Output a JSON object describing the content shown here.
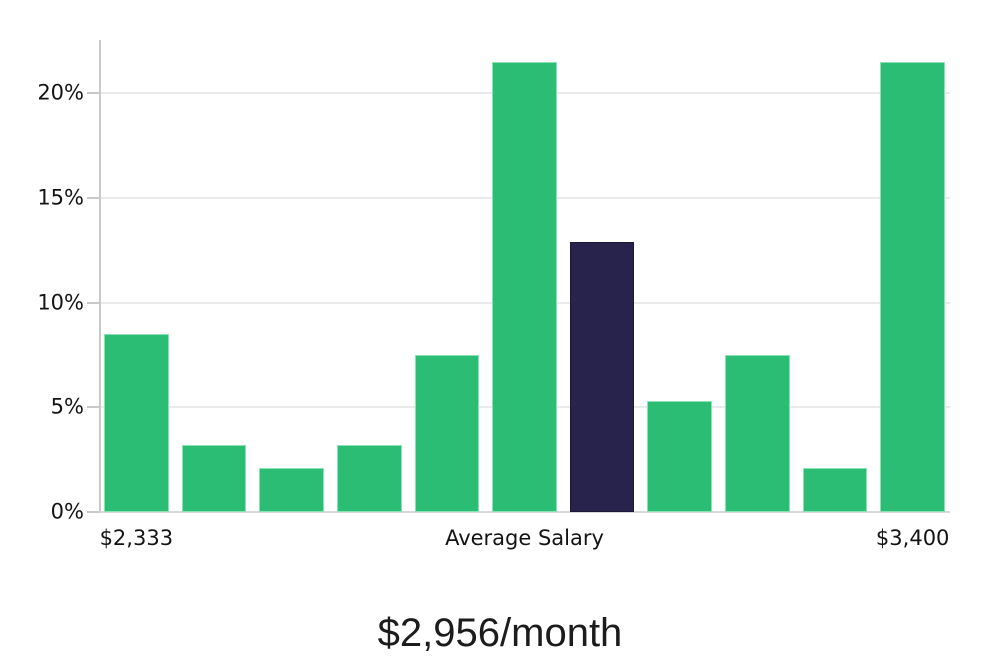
{
  "page": {
    "background": "#ffffff"
  },
  "chart_data": {
    "type": "bar",
    "title": "$2,956/month",
    "xlabel": "",
    "ylabel": "",
    "ylim": [
      0,
      22.55
    ],
    "grid": "horizontal",
    "legend": "none",
    "bars": [
      {
        "value": 8.5,
        "highlight": false
      },
      {
        "value": 3.2,
        "highlight": false
      },
      {
        "value": 2.1,
        "highlight": false
      },
      {
        "value": 3.2,
        "highlight": false
      },
      {
        "value": 7.5,
        "highlight": false
      },
      {
        "value": 21.5,
        "highlight": false
      },
      {
        "value": 12.9,
        "highlight": true
      },
      {
        "value": 5.3,
        "highlight": false
      },
      {
        "value": 7.5,
        "highlight": false
      },
      {
        "value": 2.1,
        "highlight": false
      },
      {
        "value": 21.5,
        "highlight": false
      }
    ],
    "y_ticks": [
      {
        "value": 0,
        "label": "0%"
      },
      {
        "value": 5,
        "label": "5%"
      },
      {
        "value": 10,
        "label": "10%"
      },
      {
        "value": 15,
        "label": "15%"
      },
      {
        "value": 20,
        "label": "20%"
      }
    ],
    "x_ticks": [
      {
        "bar_index": 0,
        "label": "$2,333"
      },
      {
        "bar_index": 5,
        "label": "Average Salary"
      },
      {
        "bar_index": 10,
        "label": "$3,400"
      }
    ],
    "colors": {
      "bar": "#2abd73",
      "bar_border": "#8ae3b5",
      "highlight": "#28234d",
      "highlight_border": "#1c1839",
      "grid": "#eaeaea",
      "axis": "#c9c9c9",
      "baseline": "#d9d9d9",
      "tick_label": "#141414",
      "title": "#1c1c1c"
    }
  }
}
